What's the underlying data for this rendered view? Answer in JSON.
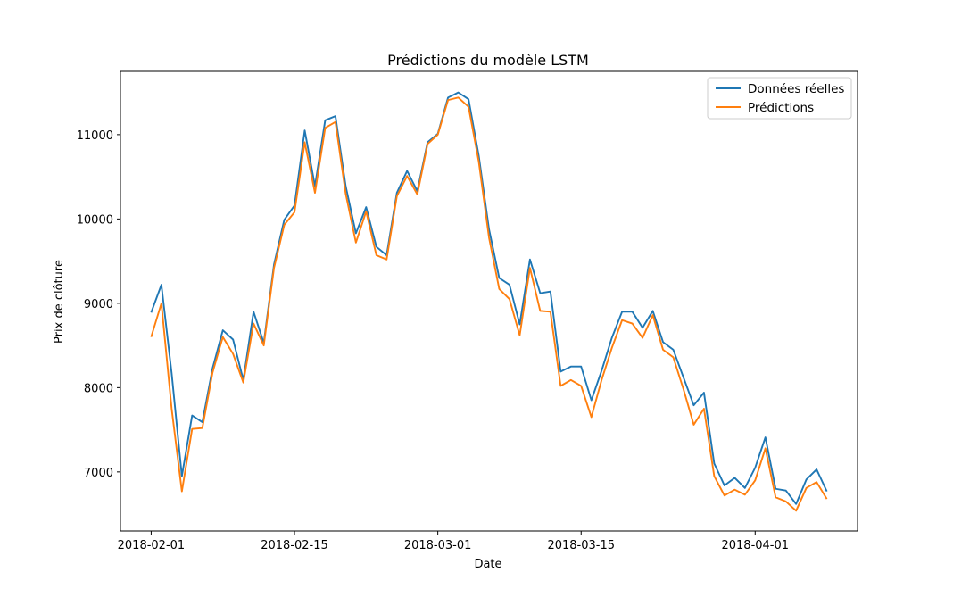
{
  "chart_data": {
    "type": "line",
    "title": "Prédictions du modèle LSTM",
    "xlabel": "Date",
    "ylabel": "Prix de clôture",
    "x_ticks": [
      "2018-02-01",
      "2018-02-15",
      "2018-03-01",
      "2018-03-15",
      "2018-04-01"
    ],
    "y_ticks": [
      7000,
      8000,
      9000,
      10000,
      11000
    ],
    "ylim": [
      6300,
      11750
    ],
    "xlim": [
      "2018-01-29",
      "2018-04-11"
    ],
    "grid": false,
    "legend_position": "top-right",
    "x": [
      "2018-02-01",
      "2018-02-02",
      "2018-02-03",
      "2018-02-04",
      "2018-02-05",
      "2018-02-06",
      "2018-02-07",
      "2018-02-08",
      "2018-02-09",
      "2018-02-10",
      "2018-02-11",
      "2018-02-12",
      "2018-02-13",
      "2018-02-14",
      "2018-02-15",
      "2018-02-16",
      "2018-02-17",
      "2018-02-18",
      "2018-02-19",
      "2018-02-20",
      "2018-02-21",
      "2018-02-22",
      "2018-02-23",
      "2018-02-24",
      "2018-02-25",
      "2018-02-26",
      "2018-02-27",
      "2018-02-28",
      "2018-03-01",
      "2018-03-02",
      "2018-03-03",
      "2018-03-04",
      "2018-03-05",
      "2018-03-06",
      "2018-03-07",
      "2018-03-08",
      "2018-03-09",
      "2018-03-10",
      "2018-03-11",
      "2018-03-12",
      "2018-03-13",
      "2018-03-14",
      "2018-03-15",
      "2018-03-16",
      "2018-03-17",
      "2018-03-18",
      "2018-03-19",
      "2018-03-20",
      "2018-03-21",
      "2018-03-22",
      "2018-03-23",
      "2018-03-24",
      "2018-03-25",
      "2018-03-26",
      "2018-03-27",
      "2018-03-28",
      "2018-03-29",
      "2018-03-30",
      "2018-03-31",
      "2018-04-01",
      "2018-04-02",
      "2018-04-03",
      "2018-04-04",
      "2018-04-05",
      "2018-04-06",
      "2018-04-07",
      "2018-04-08"
    ],
    "series": [
      {
        "name": "Données réelles",
        "color": "#1f77b4",
        "values": [
          8890,
          9220,
          8170,
          6950,
          7670,
          7590,
          8230,
          8680,
          8570,
          8090,
          8900,
          8530,
          9460,
          9990,
          10160,
          11050,
          10390,
          11170,
          11220,
          10390,
          9830,
          10140,
          9670,
          9570,
          10310,
          10570,
          10330,
          10910,
          11010,
          11440,
          11500,
          11420,
          10750,
          9880,
          9300,
          9220,
          8750,
          9520,
          9120,
          9140,
          8190,
          8250,
          8250,
          7850,
          8200,
          8590,
          8900,
          8900,
          8710,
          8910,
          8540,
          8450,
          8120,
          7790,
          7940,
          7100,
          6840,
          6930,
          6810,
          7050,
          7410,
          6800,
          6780,
          6620,
          6910,
          7030,
          6770
        ]
      },
      {
        "name": "Prédictions",
        "color": "#ff7f0e",
        "values": [
          8600,
          9000,
          7750,
          6770,
          7510,
          7520,
          8180,
          8600,
          8400,
          8060,
          8760,
          8500,
          9420,
          9930,
          10080,
          10910,
          10310,
          11080,
          11150,
          10300,
          9720,
          10090,
          9570,
          9520,
          10270,
          10510,
          10290,
          10890,
          11000,
          11410,
          11440,
          11330,
          10680,
          9780,
          9170,
          9050,
          8620,
          9420,
          8910,
          8900,
          8020,
          8090,
          8020,
          7650,
          8090,
          8470,
          8800,
          8760,
          8590,
          8860,
          8450,
          8360,
          7980,
          7560,
          7750,
          6950,
          6720,
          6790,
          6730,
          6900,
          7280,
          6700,
          6650,
          6540,
          6810,
          6880,
          6680
        ]
      }
    ]
  }
}
